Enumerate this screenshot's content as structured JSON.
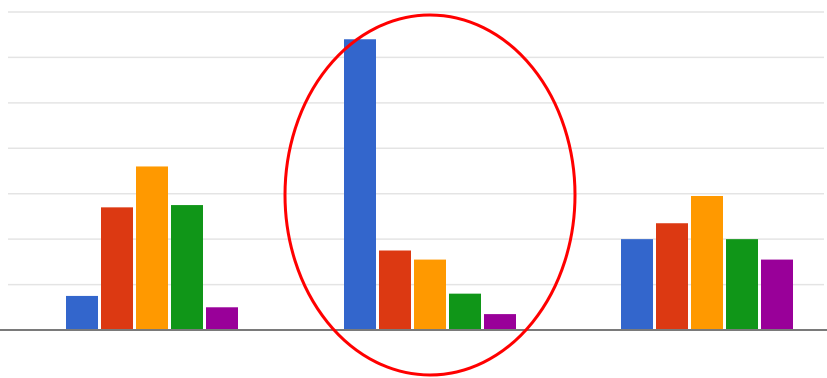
{
  "chart_data": {
    "type": "bar",
    "title": "",
    "xlabel": "",
    "ylabel": "",
    "categories": [
      "",
      "",
      ""
    ],
    "ylim": [
      0,
      7
    ],
    "grid": true,
    "legend": "none",
    "series": [
      {
        "color": "#3366cc",
        "values": [
          0.75,
          6.4,
          2.0
        ]
      },
      {
        "color": "#dc3912",
        "values": [
          2.7,
          1.75,
          2.35
        ]
      },
      {
        "color": "#ff9900",
        "values": [
          3.6,
          1.55,
          2.95
        ]
      },
      {
        "color": "#109618",
        "values": [
          2.75,
          0.8,
          2.0
        ]
      },
      {
        "color": "#990099",
        "values": [
          0.5,
          0.35,
          1.55
        ]
      }
    ],
    "annotation": {
      "shape": "ellipse",
      "color": "#ff0000",
      "target_category_index": 1
    }
  },
  "colors": {
    "gridline": "#e4e4e4",
    "baseline": "#7a7a7a",
    "background": "#ffffff"
  }
}
